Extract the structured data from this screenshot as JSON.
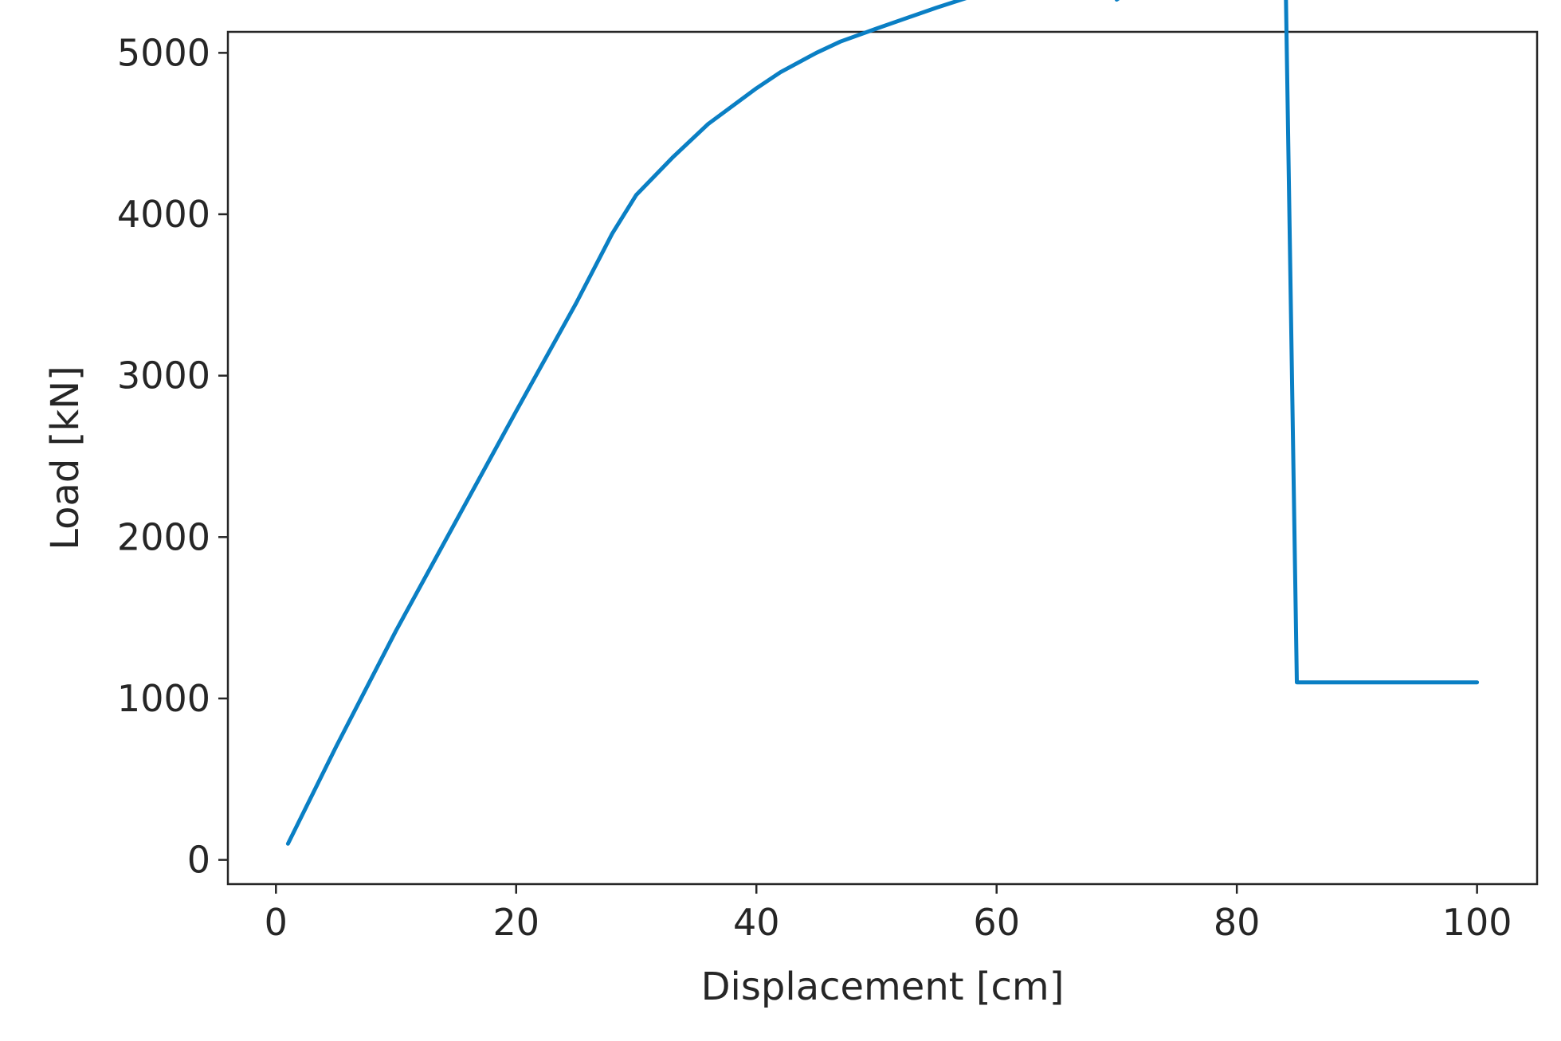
{
  "chart_data": {
    "type": "line",
    "title": "",
    "xlabel": "Displacement [cm]",
    "ylabel": "Load  [kN]",
    "xlim": [
      -4,
      105
    ],
    "ylim": [
      -150,
      5130
    ],
    "x_ticks": [
      0,
      20,
      40,
      60,
      80,
      100
    ],
    "x_tick_labels": [
      "0",
      "20",
      "40",
      "60",
      "80",
      "100"
    ],
    "y_ticks": [
      0,
      1000,
      2000,
      3000,
      4000,
      5000
    ],
    "y_tick_labels": [
      "0",
      "1000",
      "2000",
      "3000",
      "4000",
      "5000"
    ],
    "grid": false,
    "colors": {
      "series": "#0a7fc4",
      "axes": "#262626"
    },
    "series": [
      {
        "x": [
          1,
          5,
          10,
          15,
          20,
          25,
          28,
          30,
          33,
          36,
          40,
          42,
          45,
          47,
          50,
          55,
          60,
          63,
          66,
          67,
          69,
          70,
          72,
          73,
          75,
          78,
          80,
          82,
          84,
          85,
          90,
          95,
          100
        ],
        "y": [
          100,
          700,
          1420,
          2100,
          2780,
          3450,
          3880,
          4120,
          4350,
          4560,
          4780,
          4880,
          5000,
          5070,
          5150,
          5280,
          5400,
          5470,
          5540,
          5510,
          5580,
          5330,
          5430,
          5350,
          5430,
          5530,
          5620,
          5690,
          5750,
          1100,
          1100,
          1100,
          1100
        ]
      }
    ]
  }
}
